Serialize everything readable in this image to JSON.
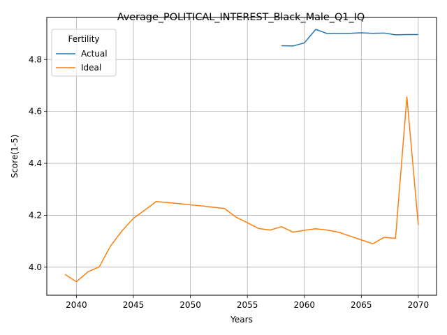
{
  "chart_data": {
    "type": "line",
    "title": "Average_POLITICAL_INTEREST_Black_Male_Q1_IQ",
    "xlabel": "Years",
    "ylabel": "Score(1-5)",
    "xlim": [
      2037.4,
      2071.6
    ],
    "ylim": [
      3.892,
      4.962
    ],
    "xticks": [
      2040,
      2045,
      2050,
      2055,
      2060,
      2065,
      2070
    ],
    "yticks": [
      4.0,
      4.2,
      4.4,
      4.6,
      4.8
    ],
    "grid": true,
    "legend": {
      "title": "Fertility",
      "placement": "top-left"
    },
    "series": [
      {
        "name": "Actual",
        "color": "#1f77b4",
        "points": [
          [
            2058,
            4.853
          ],
          [
            2059,
            4.852
          ],
          [
            2060,
            4.864
          ],
          [
            2061,
            4.916
          ],
          [
            2062,
            4.9
          ],
          [
            2063,
            4.901
          ],
          [
            2064,
            4.901
          ],
          [
            2065,
            4.903
          ],
          [
            2066,
            4.901
          ],
          [
            2067,
            4.902
          ],
          [
            2068,
            4.895
          ],
          [
            2069,
            4.896
          ],
          [
            2070,
            4.896
          ]
        ]
      },
      {
        "name": "Ideal",
        "color": "#ff7f0e",
        "points": [
          [
            2039,
            3.972
          ],
          [
            2040,
            3.944
          ],
          [
            2041,
            3.982
          ],
          [
            2042,
            4.001
          ],
          [
            2043,
            4.082
          ],
          [
            2044,
            4.14
          ],
          [
            2045,
            4.188
          ],
          [
            2046,
            4.22
          ],
          [
            2047,
            4.253
          ],
          [
            2048,
            4.249
          ],
          [
            2049,
            4.245
          ],
          [
            2050,
            4.24
          ],
          [
            2051,
            4.236
          ],
          [
            2052,
            4.231
          ],
          [
            2053,
            4.226
          ],
          [
            2054,
            4.193
          ],
          [
            2055,
            4.171
          ],
          [
            2056,
            4.149
          ],
          [
            2057,
            4.143
          ],
          [
            2058,
            4.156
          ],
          [
            2059,
            4.135
          ],
          [
            2060,
            4.142
          ],
          [
            2061,
            4.148
          ],
          [
            2062,
            4.143
          ],
          [
            2063,
            4.135
          ],
          [
            2064,
            4.12
          ],
          [
            2065,
            4.105
          ],
          [
            2066,
            4.09
          ],
          [
            2067,
            4.115
          ],
          [
            2068,
            4.111
          ],
          [
            2069,
            4.656
          ],
          [
            2070,
            4.162
          ]
        ]
      }
    ]
  }
}
